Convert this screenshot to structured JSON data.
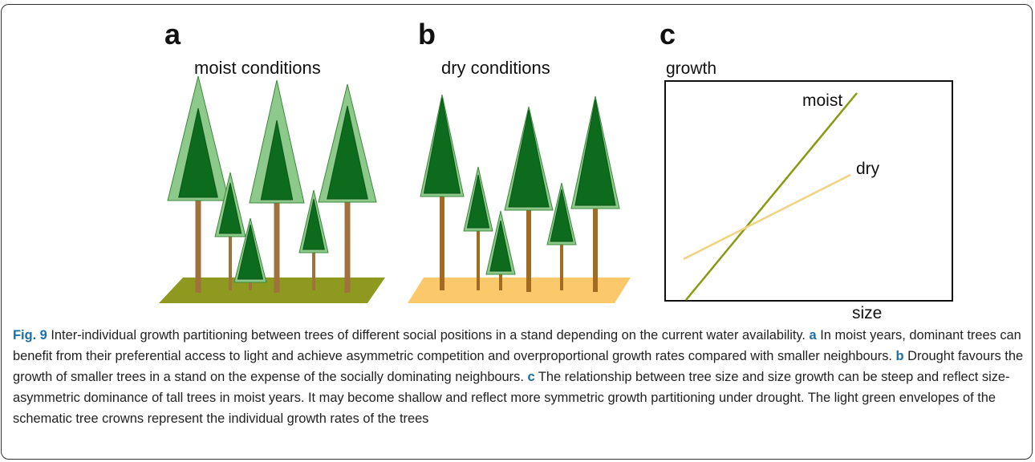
{
  "panels": [
    {
      "label": "a",
      "title": "moist conditions"
    },
    {
      "label": "b",
      "title": "dry conditions"
    },
    {
      "label": "c",
      "y_label": "growth",
      "x_label": "size",
      "lines": [
        "moist",
        "dry"
      ]
    }
  ],
  "caption": {
    "label": "Fig. 9",
    "text": "Inter-individual growth partitioning between trees of different social positions in a stand depending on the current water availability.",
    "parts": [
      {
        "label": "a",
        "text": "In moist years, dominant trees can benefit from their preferential access to light and achieve asymmetric competition and overproportional growth rates compared with smaller neighbours."
      },
      {
        "label": "b",
        "text": "Drought favours the growth of smaller trees in a stand on the expense of the socially dominating neighbours."
      },
      {
        "label": "c",
        "text": "The relationship between tree size and size growth can be steep and reflect size-asymmetric dominance of tall trees in moist years. It may become shallow and reflect more symmetric growth partitioning under drought. The light green envelopes of the schematic tree crowns represent the individual growth rates of the trees"
      }
    ]
  }
}
